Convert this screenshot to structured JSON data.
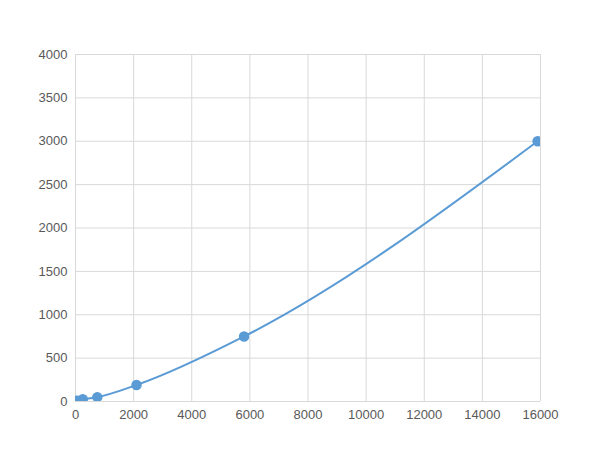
{
  "chart_data": {
    "type": "line",
    "x": [
      60,
      250,
      750,
      2100,
      5800,
      15900
    ],
    "values": [
      10,
      25,
      50,
      190,
      750,
      3000
    ],
    "color": "#5b9bd5",
    "marker": "circle",
    "line_style": "solid",
    "xlim": [
      0,
      16000
    ],
    "xticks": [
      0,
      2000,
      4000,
      6000,
      8000,
      10000,
      12000,
      14000,
      16000
    ],
    "ylim": [
      0,
      4000
    ],
    "yticks": [
      0,
      500,
      1000,
      1500,
      2000,
      2500,
      3000,
      3500,
      4000
    ],
    "grid": true
  }
}
